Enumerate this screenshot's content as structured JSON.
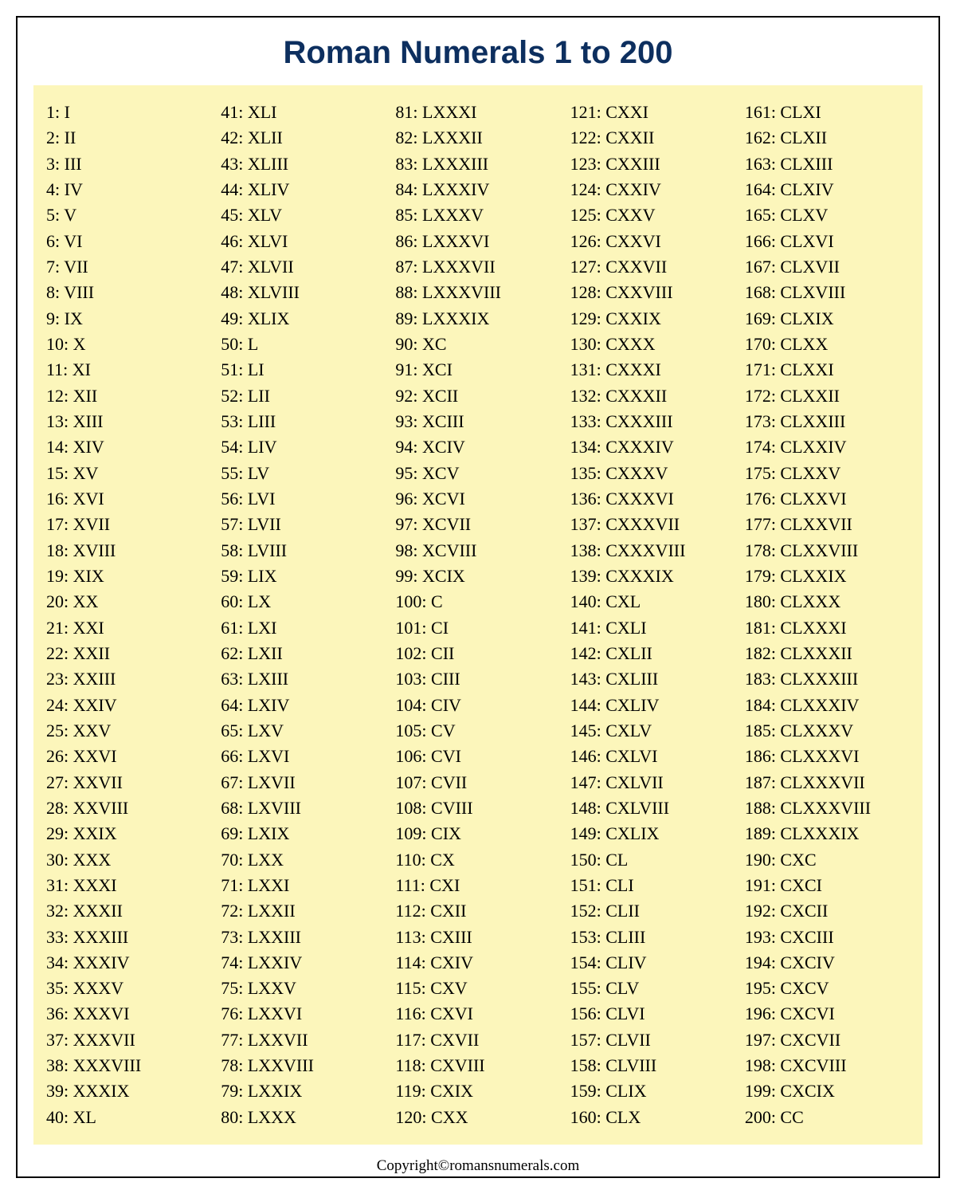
{
  "title": "Roman Numerals 1 to 200",
  "copyright": "Copyright©romansnumerals.com",
  "style": {
    "type": "table",
    "title_color": "#0d2f5f",
    "title_fontsize": 40,
    "title_font": "Arial",
    "title_weight": "bold",
    "chart_background": "#fcf6bb",
    "page_background": "#ffffff",
    "border_color": "#000000",
    "border_width": 2,
    "entry_fontsize": 22,
    "entry_color": "#000000",
    "entry_font": "Georgia",
    "copyright_fontsize": 19,
    "columns_count": 5,
    "rows_per_column": 40
  },
  "columns": [
    [
      {
        "n": 1,
        "r": "I"
      },
      {
        "n": 2,
        "r": "II"
      },
      {
        "n": 3,
        "r": "III"
      },
      {
        "n": 4,
        "r": "IV"
      },
      {
        "n": 5,
        "r": "V"
      },
      {
        "n": 6,
        "r": "VI"
      },
      {
        "n": 7,
        "r": "VII"
      },
      {
        "n": 8,
        "r": "VIII"
      },
      {
        "n": 9,
        "r": "IX"
      },
      {
        "n": 10,
        "r": "X"
      },
      {
        "n": 11,
        "r": "XI"
      },
      {
        "n": 12,
        "r": "XII"
      },
      {
        "n": 13,
        "r": "XIII"
      },
      {
        "n": 14,
        "r": "XIV"
      },
      {
        "n": 15,
        "r": "XV"
      },
      {
        "n": 16,
        "r": "XVI"
      },
      {
        "n": 17,
        "r": "XVII"
      },
      {
        "n": 18,
        "r": "XVIII"
      },
      {
        "n": 19,
        "r": "XIX"
      },
      {
        "n": 20,
        "r": "XX"
      },
      {
        "n": 21,
        "r": "XXI"
      },
      {
        "n": 22,
        "r": "XXII"
      },
      {
        "n": 23,
        "r": "XXIII"
      },
      {
        "n": 24,
        "r": "XXIV"
      },
      {
        "n": 25,
        "r": "XXV"
      },
      {
        "n": 26,
        "r": "XXVI"
      },
      {
        "n": 27,
        "r": "XXVII"
      },
      {
        "n": 28,
        "r": "XXVIII"
      },
      {
        "n": 29,
        "r": "XXIX"
      },
      {
        "n": 30,
        "r": "XXX"
      },
      {
        "n": 31,
        "r": "XXXI"
      },
      {
        "n": 32,
        "r": "XXXII"
      },
      {
        "n": 33,
        "r": "XXXIII"
      },
      {
        "n": 34,
        "r": "XXXIV"
      },
      {
        "n": 35,
        "r": "XXXV"
      },
      {
        "n": 36,
        "r": "XXXVI"
      },
      {
        "n": 37,
        "r": "XXXVII"
      },
      {
        "n": 38,
        "r": "XXXVIII"
      },
      {
        "n": 39,
        "r": "XXXIX"
      },
      {
        "n": 40,
        "r": "XL"
      }
    ],
    [
      {
        "n": 41,
        "r": "XLI"
      },
      {
        "n": 42,
        "r": "XLII"
      },
      {
        "n": 43,
        "r": "XLIII"
      },
      {
        "n": 44,
        "r": "XLIV"
      },
      {
        "n": 45,
        "r": "XLV"
      },
      {
        "n": 46,
        "r": "XLVI"
      },
      {
        "n": 47,
        "r": "XLVII"
      },
      {
        "n": 48,
        "r": "XLVIII"
      },
      {
        "n": 49,
        "r": "XLIX"
      },
      {
        "n": 50,
        "r": "L"
      },
      {
        "n": 51,
        "r": "LI"
      },
      {
        "n": 52,
        "r": "LII"
      },
      {
        "n": 53,
        "r": "LIII"
      },
      {
        "n": 54,
        "r": "LIV"
      },
      {
        "n": 55,
        "r": "LV"
      },
      {
        "n": 56,
        "r": "LVI"
      },
      {
        "n": 57,
        "r": "LVII"
      },
      {
        "n": 58,
        "r": "LVIII"
      },
      {
        "n": 59,
        "r": "LIX"
      },
      {
        "n": 60,
        "r": "LX"
      },
      {
        "n": 61,
        "r": "LXI"
      },
      {
        "n": 62,
        "r": "LXII"
      },
      {
        "n": 63,
        "r": "LXIII"
      },
      {
        "n": 64,
        "r": "LXIV"
      },
      {
        "n": 65,
        "r": "LXV"
      },
      {
        "n": 66,
        "r": "LXVI"
      },
      {
        "n": 67,
        "r": "LXVII"
      },
      {
        "n": 68,
        "r": "LXVIII"
      },
      {
        "n": 69,
        "r": "LXIX"
      },
      {
        "n": 70,
        "r": "LXX"
      },
      {
        "n": 71,
        "r": "LXXI"
      },
      {
        "n": 72,
        "r": "LXXII"
      },
      {
        "n": 73,
        "r": "LXXIII"
      },
      {
        "n": 74,
        "r": "LXXIV"
      },
      {
        "n": 75,
        "r": "LXXV"
      },
      {
        "n": 76,
        "r": "LXXVI"
      },
      {
        "n": 77,
        "r": "LXXVII"
      },
      {
        "n": 78,
        "r": "LXXVIII"
      },
      {
        "n": 79,
        "r": "LXXIX"
      },
      {
        "n": 80,
        "r": "LXXX"
      }
    ],
    [
      {
        "n": 81,
        "r": "LXXXI"
      },
      {
        "n": 82,
        "r": "LXXXII"
      },
      {
        "n": 83,
        "r": "LXXXIII"
      },
      {
        "n": 84,
        "r": "LXXXIV"
      },
      {
        "n": 85,
        "r": "LXXXV"
      },
      {
        "n": 86,
        "r": "LXXXVI"
      },
      {
        "n": 87,
        "r": "LXXXVII"
      },
      {
        "n": 88,
        "r": "LXXXVIII"
      },
      {
        "n": 89,
        "r": "LXXXIX"
      },
      {
        "n": 90,
        "r": "XC"
      },
      {
        "n": 91,
        "r": "XCI"
      },
      {
        "n": 92,
        "r": "XCII"
      },
      {
        "n": 93,
        "r": "XCIII"
      },
      {
        "n": 94,
        "r": "XCIV"
      },
      {
        "n": 95,
        "r": "XCV"
      },
      {
        "n": 96,
        "r": "XCVI"
      },
      {
        "n": 97,
        "r": "XCVII"
      },
      {
        "n": 98,
        "r": "XCVIII"
      },
      {
        "n": 99,
        "r": "XCIX"
      },
      {
        "n": 100,
        "r": "C"
      },
      {
        "n": 101,
        "r": "CI"
      },
      {
        "n": 102,
        "r": "CII"
      },
      {
        "n": 103,
        "r": "CIII"
      },
      {
        "n": 104,
        "r": "CIV"
      },
      {
        "n": 105,
        "r": "CV"
      },
      {
        "n": 106,
        "r": "CVI"
      },
      {
        "n": 107,
        "r": "CVII"
      },
      {
        "n": 108,
        "r": "CVIII"
      },
      {
        "n": 109,
        "r": "CIX"
      },
      {
        "n": 110,
        "r": "CX"
      },
      {
        "n": 111,
        "r": "CXI"
      },
      {
        "n": 112,
        "r": "CXII"
      },
      {
        "n": 113,
        "r": "CXIII"
      },
      {
        "n": 114,
        "r": "CXIV"
      },
      {
        "n": 115,
        "r": "CXV"
      },
      {
        "n": 116,
        "r": "CXVI"
      },
      {
        "n": 117,
        "r": "CXVII"
      },
      {
        "n": 118,
        "r": "CXVIII"
      },
      {
        "n": 119,
        "r": "CXIX"
      },
      {
        "n": 120,
        "r": "CXX"
      }
    ],
    [
      {
        "n": 121,
        "r": "CXXI"
      },
      {
        "n": 122,
        "r": "CXXII"
      },
      {
        "n": 123,
        "r": "CXXIII"
      },
      {
        "n": 124,
        "r": "CXXIV"
      },
      {
        "n": 125,
        "r": "CXXV"
      },
      {
        "n": 126,
        "r": "CXXVI"
      },
      {
        "n": 127,
        "r": "CXXVII"
      },
      {
        "n": 128,
        "r": "CXXVIII"
      },
      {
        "n": 129,
        "r": "CXXIX"
      },
      {
        "n": 130,
        "r": "CXXX"
      },
      {
        "n": 131,
        "r": "CXXXI"
      },
      {
        "n": 132,
        "r": "CXXXII"
      },
      {
        "n": 133,
        "r": "CXXXIII"
      },
      {
        "n": 134,
        "r": "CXXXIV"
      },
      {
        "n": 135,
        "r": "CXXXV"
      },
      {
        "n": 136,
        "r": "CXXXVI"
      },
      {
        "n": 137,
        "r": "CXXXVII"
      },
      {
        "n": 138,
        "r": "CXXXVIII"
      },
      {
        "n": 139,
        "r": "CXXXIX"
      },
      {
        "n": 140,
        "r": "CXL"
      },
      {
        "n": 141,
        "r": "CXLI"
      },
      {
        "n": 142,
        "r": "CXLII"
      },
      {
        "n": 143,
        "r": "CXLIII"
      },
      {
        "n": 144,
        "r": "CXLIV"
      },
      {
        "n": 145,
        "r": "CXLV"
      },
      {
        "n": 146,
        "r": "CXLVI"
      },
      {
        "n": 147,
        "r": "CXLVII"
      },
      {
        "n": 148,
        "r": "CXLVIII"
      },
      {
        "n": 149,
        "r": "CXLIX"
      },
      {
        "n": 150,
        "r": "CL"
      },
      {
        "n": 151,
        "r": "CLI"
      },
      {
        "n": 152,
        "r": "CLII"
      },
      {
        "n": 153,
        "r": "CLIII"
      },
      {
        "n": 154,
        "r": "CLIV"
      },
      {
        "n": 155,
        "r": "CLV"
      },
      {
        "n": 156,
        "r": "CLVI"
      },
      {
        "n": 157,
        "r": "CLVII"
      },
      {
        "n": 158,
        "r": "CLVIII"
      },
      {
        "n": 159,
        "r": "CLIX"
      },
      {
        "n": 160,
        "r": "CLX"
      }
    ],
    [
      {
        "n": 161,
        "r": "CLXI"
      },
      {
        "n": 162,
        "r": "CLXII"
      },
      {
        "n": 163,
        "r": "CLXIII"
      },
      {
        "n": 164,
        "r": "CLXIV"
      },
      {
        "n": 165,
        "r": "CLXV"
      },
      {
        "n": 166,
        "r": "CLXVI"
      },
      {
        "n": 167,
        "r": "CLXVII"
      },
      {
        "n": 168,
        "r": "CLXVIII"
      },
      {
        "n": 169,
        "r": "CLXIX"
      },
      {
        "n": 170,
        "r": "CLXX"
      },
      {
        "n": 171,
        "r": "CLXXI"
      },
      {
        "n": 172,
        "r": "CLXXII"
      },
      {
        "n": 173,
        "r": "CLXXIII"
      },
      {
        "n": 174,
        "r": "CLXXIV"
      },
      {
        "n": 175,
        "r": "CLXXV"
      },
      {
        "n": 176,
        "r": "CLXXVI"
      },
      {
        "n": 177,
        "r": "CLXXVII"
      },
      {
        "n": 178,
        "r": "CLXXVIII"
      },
      {
        "n": 179,
        "r": "CLXXIX"
      },
      {
        "n": 180,
        "r": "CLXXX"
      },
      {
        "n": 181,
        "r": "CLXXXI"
      },
      {
        "n": 182,
        "r": "CLXXXII"
      },
      {
        "n": 183,
        "r": "CLXXXIII"
      },
      {
        "n": 184,
        "r": "CLXXXIV"
      },
      {
        "n": 185,
        "r": "CLXXXV"
      },
      {
        "n": 186,
        "r": "CLXXXVI"
      },
      {
        "n": 187,
        "r": "CLXXXVII"
      },
      {
        "n": 188,
        "r": "CLXXXVIII"
      },
      {
        "n": 189,
        "r": "CLXXXIX"
      },
      {
        "n": 190,
        "r": "CXC"
      },
      {
        "n": 191,
        "r": "CXCI"
      },
      {
        "n": 192,
        "r": "CXCII"
      },
      {
        "n": 193,
        "r": "CXCIII"
      },
      {
        "n": 194,
        "r": "CXCIV"
      },
      {
        "n": 195,
        "r": "CXCV"
      },
      {
        "n": 196,
        "r": "CXCVI"
      },
      {
        "n": 197,
        "r": "CXCVII"
      },
      {
        "n": 198,
        "r": "CXCVIII"
      },
      {
        "n": 199,
        "r": "CXCIX"
      },
      {
        "n": 200,
        "r": "CC"
      }
    ]
  ]
}
